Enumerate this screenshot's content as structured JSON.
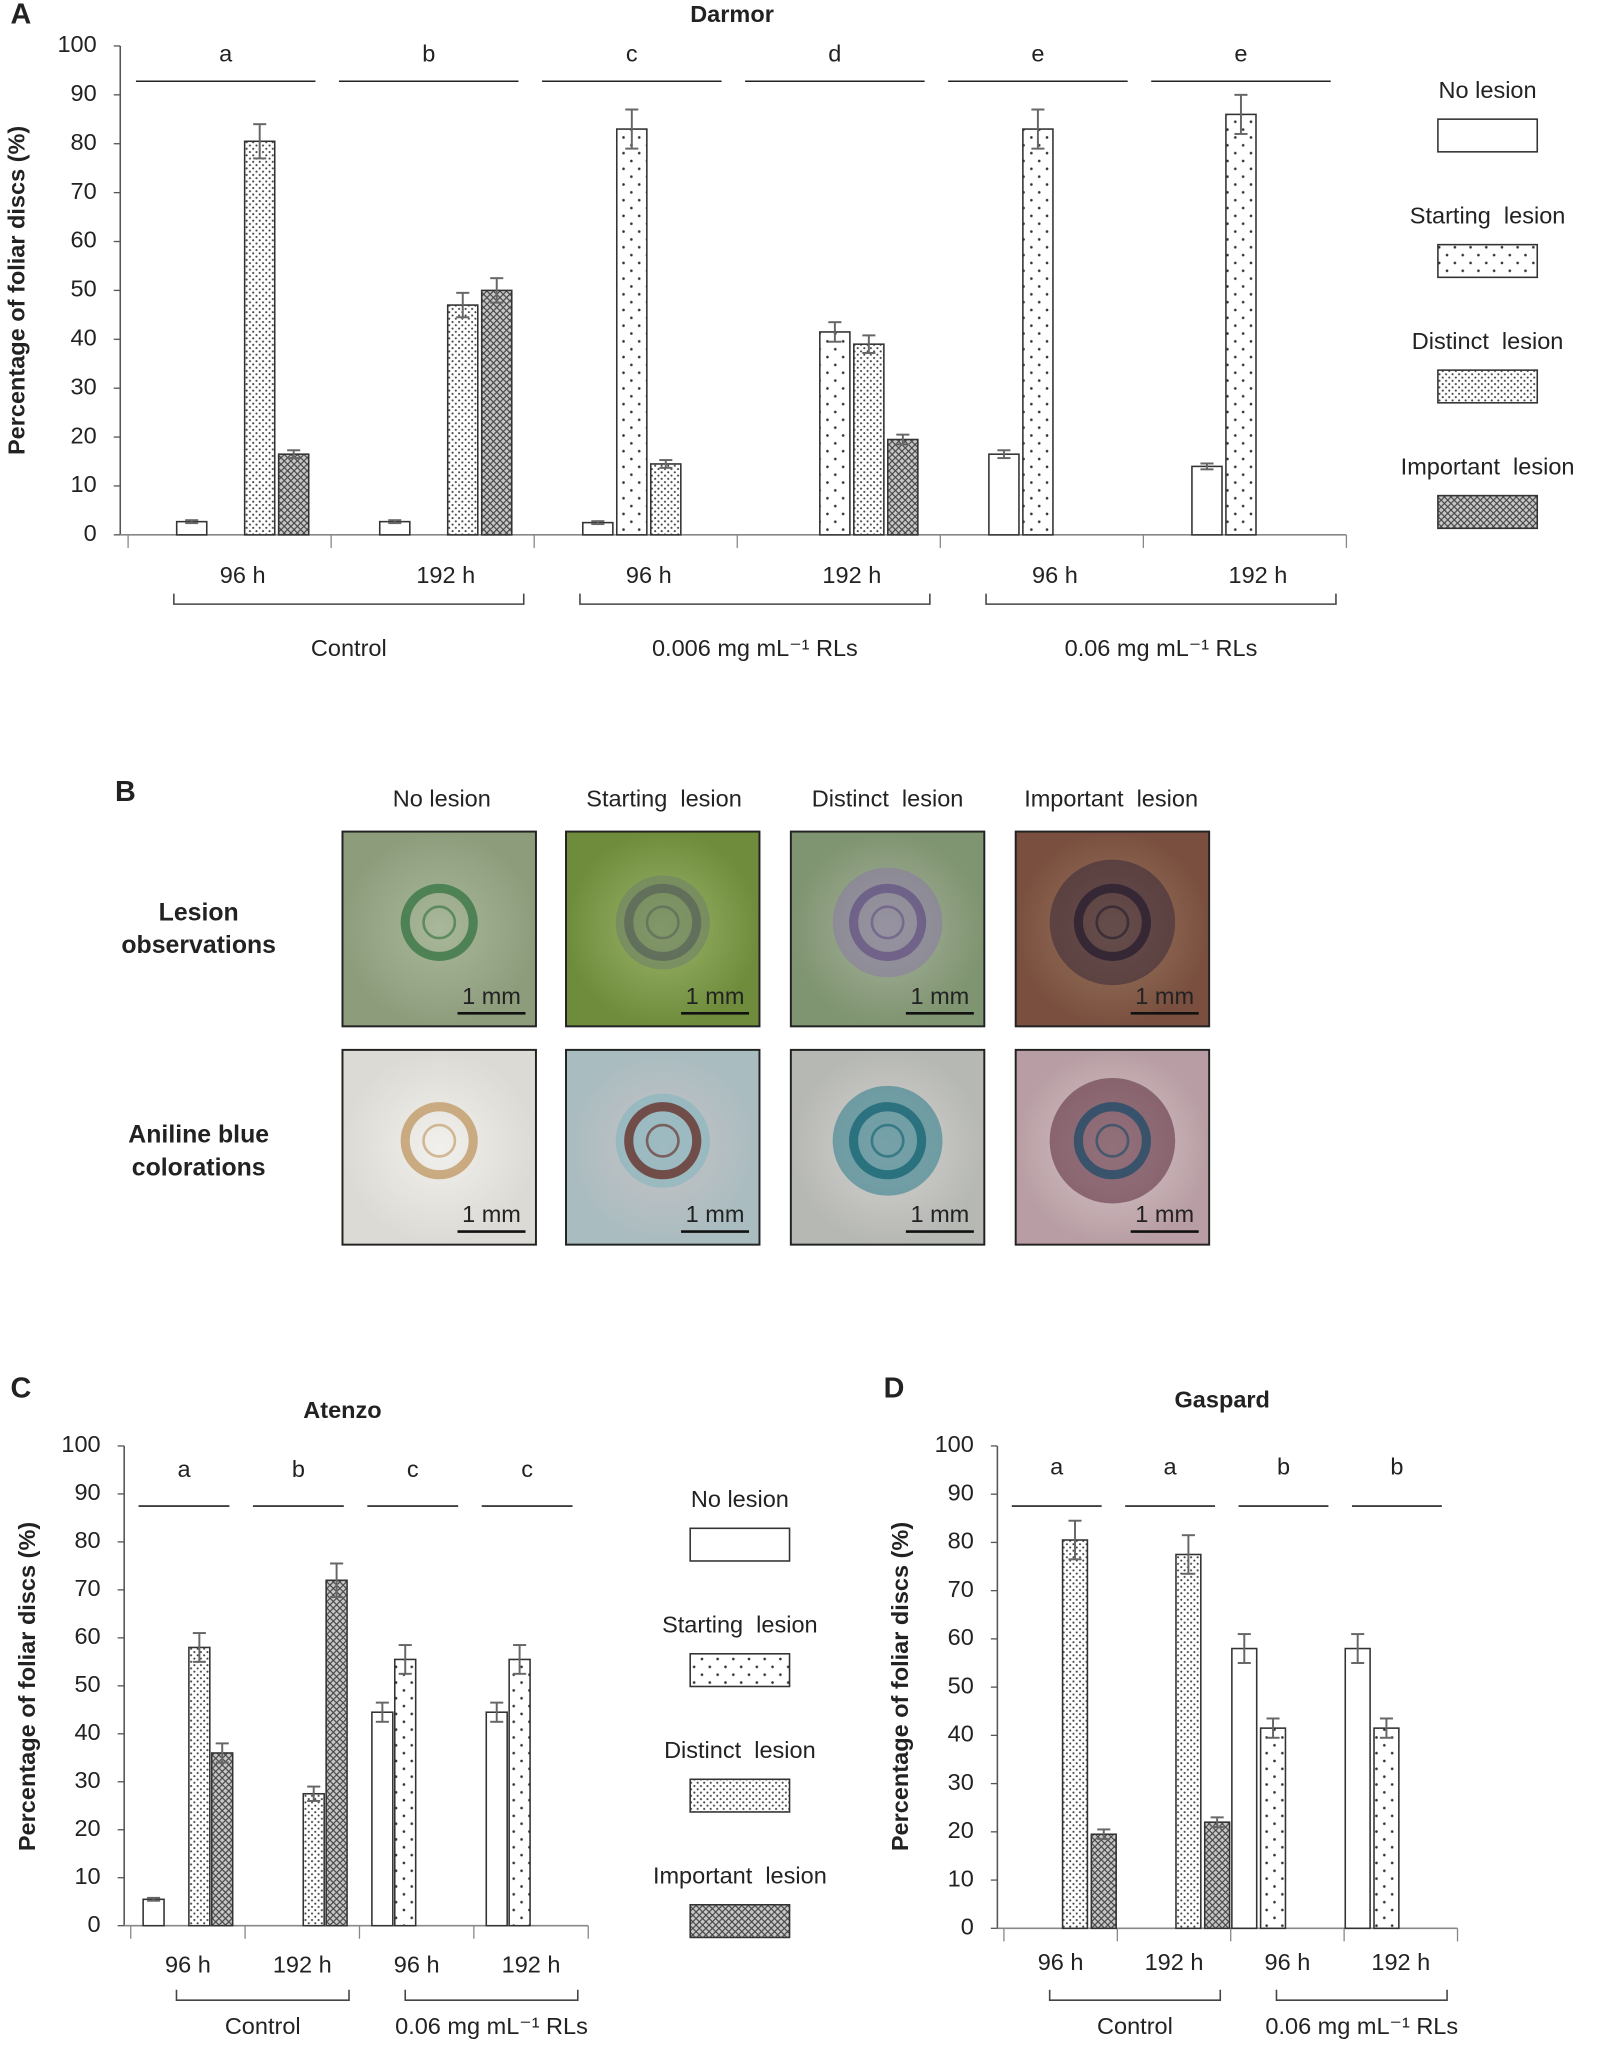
{
  "chart_data": [
    {
      "type": "bar",
      "panel": "A",
      "title": "Darmor",
      "ylabel": "Percentage of foliar discs (%)",
      "ylim": [
        0,
        100
      ],
      "yticks": [
        0,
        10,
        20,
        30,
        40,
        50,
        60,
        70,
        80,
        90,
        100
      ],
      "grid": false,
      "legend": "right",
      "groups": [
        {
          "name": "Control",
          "categories": [
            "96 h",
            "192 h"
          ]
        },
        {
          "name": "0.006 mg mL⁻¹ RLs",
          "categories": [
            "96 h",
            "192 h"
          ]
        },
        {
          "name": "0.06 mg mL⁻¹ RLs",
          "categories": [
            "96 h",
            "192 h"
          ]
        }
      ],
      "letters": [
        "a",
        "b",
        "c",
        "d",
        "e",
        "e"
      ],
      "series": [
        {
          "name": "No lesion",
          "color": "#333333",
          "pattern": "none",
          "values": [
            2.7,
            2.7,
            2.5,
            0,
            16.5,
            14
          ],
          "errors": [
            0.3,
            0.3,
            0.3,
            null,
            0.8,
            0.6
          ]
        },
        {
          "name": "Starting  lesion",
          "color": "#333333",
          "pattern": "sparse-dots",
          "values": [
            0,
            0,
            83,
            41.5,
            83,
            86
          ],
          "errors": [
            null,
            null,
            4,
            2,
            4,
            4
          ]
        },
        {
          "name": "Distinct  lesion",
          "color": "#333333",
          "pattern": "dense-dots",
          "values": [
            80.5,
            47,
            14.5,
            39,
            0,
            0
          ],
          "errors": [
            3.5,
            2.5,
            0.8,
            1.8,
            null,
            null
          ]
        },
        {
          "name": "Important  lesion",
          "color": "#333333",
          "pattern": "crosshatch",
          "values": [
            16.5,
            50,
            0,
            19.5,
            0,
            0
          ],
          "errors": [
            0.8,
            2.5,
            null,
            1,
            null,
            null
          ]
        }
      ]
    },
    {
      "type": "bar",
      "panel": "C",
      "title": "Atenzo",
      "ylabel": "Percentage of foliar discs (%)",
      "ylim": [
        0,
        100
      ],
      "yticks": [
        0,
        10,
        20,
        30,
        40,
        50,
        60,
        70,
        80,
        90,
        100
      ],
      "grid": false,
      "legend": "right",
      "groups": [
        {
          "name": "Control",
          "categories": [
            "96 h",
            "192 h"
          ]
        },
        {
          "name": "0.06 mg mL⁻¹ RLs",
          "categories": [
            "96 h",
            "192 h"
          ]
        }
      ],
      "letters": [
        "a",
        "b",
        "c",
        "c"
      ],
      "series": [
        {
          "name": "No lesion",
          "color": "#333333",
          "pattern": "none",
          "values": [
            5.5,
            0,
            44.5,
            44.5
          ],
          "errors": [
            0.3,
            null,
            2,
            2
          ]
        },
        {
          "name": "Starting  lesion",
          "color": "#333333",
          "pattern": "sparse-dots",
          "values": [
            0,
            0,
            55.5,
            55.5
          ],
          "errors": [
            null,
            null,
            3,
            3
          ]
        },
        {
          "name": "Distinct  lesion",
          "color": "#333333",
          "pattern": "dense-dots",
          "values": [
            58,
            27.5,
            0,
            0
          ],
          "errors": [
            3,
            1.5,
            null,
            null
          ]
        },
        {
          "name": "Important  lesion",
          "color": "#333333",
          "pattern": "crosshatch",
          "values": [
            36,
            72,
            0,
            0
          ],
          "errors": [
            2,
            3.5,
            null,
            null
          ]
        }
      ]
    },
    {
      "type": "bar",
      "panel": "D",
      "title": "Gaspard",
      "ylabel": "Percentage of foliar discs (%)",
      "ylim": [
        0,
        100
      ],
      "yticks": [
        0,
        10,
        20,
        30,
        40,
        50,
        60,
        70,
        80,
        90,
        100
      ],
      "grid": false,
      "legend": "none",
      "groups": [
        {
          "name": "Control",
          "categories": [
            "96 h",
            "192 h"
          ]
        },
        {
          "name": "0.06 mg mL⁻¹ RLs",
          "categories": [
            "96 h",
            "192 h"
          ]
        }
      ],
      "letters": [
        "a",
        "a",
        "b",
        "b"
      ],
      "series": [
        {
          "name": "No lesion",
          "color": "#333333",
          "pattern": "none",
          "values": [
            0,
            0,
            58,
            58
          ],
          "errors": [
            null,
            null,
            3,
            3
          ]
        },
        {
          "name": "Starting  lesion",
          "color": "#333333",
          "pattern": "sparse-dots",
          "values": [
            0,
            0,
            41.5,
            41.5
          ],
          "errors": [
            null,
            null,
            2,
            2
          ]
        },
        {
          "name": "Distinct  lesion",
          "color": "#333333",
          "pattern": "dense-dots",
          "values": [
            80.5,
            77.5,
            0,
            0
          ],
          "errors": [
            4,
            4,
            null,
            null
          ]
        },
        {
          "name": "Important  lesion",
          "color": "#333333",
          "pattern": "crosshatch",
          "values": [
            19.5,
            22,
            0,
            0
          ],
          "errors": [
            1,
            1,
            null,
            null
          ]
        }
      ]
    }
  ],
  "panel_b": {
    "label": "B",
    "columns": [
      "No lesion",
      "Starting  lesion",
      "Distinct  lesion",
      "Important  lesion"
    ],
    "rows": [
      "Lesion observations",
      "Aniline blue colorations"
    ],
    "scale_label": "1 mm"
  }
}
